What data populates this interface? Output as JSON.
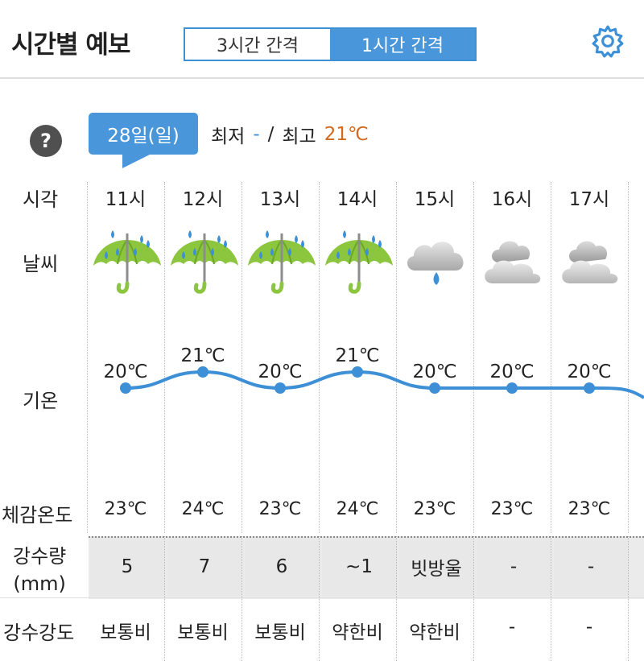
{
  "header": {
    "title": "시간별 예보",
    "tab_3h": "3시간 간격",
    "tab_1h": "1시간 간격",
    "active_tab": "1시간 간격"
  },
  "summary": {
    "date_tag": "28일(일)",
    "min_label": "최저",
    "min_value": "-",
    "separator": "/",
    "max_label": "최고",
    "max_value": "21℃",
    "help": "?"
  },
  "row_labels": {
    "time": "시각",
    "weather": "날씨",
    "temp": "기온",
    "feels": "체감온도",
    "rain_amount_1": "강수량",
    "rain_amount_2": "(mm)",
    "rain_intensity": "강수강도"
  },
  "hours": [
    {
      "hour": "11시",
      "weather": "umbrella-rain-icon",
      "temp": "20℃",
      "feels": "23℃",
      "rain": "5",
      "intensity": "보통비"
    },
    {
      "hour": "12시",
      "weather": "umbrella-rain-icon",
      "temp": "21℃",
      "feels": "24℃",
      "rain": "7",
      "intensity": "보통비"
    },
    {
      "hour": "13시",
      "weather": "umbrella-rain-icon",
      "temp": "20℃",
      "feels": "23℃",
      "rain": "6",
      "intensity": "보통비"
    },
    {
      "hour": "14시",
      "weather": "umbrella-rain-icon",
      "temp": "21℃",
      "feels": "24℃",
      "rain": "~1",
      "intensity": "약한비"
    },
    {
      "hour": "15시",
      "weather": "cloud-drop-icon",
      "temp": "20℃",
      "feels": "23℃",
      "rain": "빗방울",
      "intensity": "약한비"
    },
    {
      "hour": "16시",
      "weather": "cloudy-icon",
      "temp": "20℃",
      "feels": "23℃",
      "rain": "-",
      "intensity": "-"
    },
    {
      "hour": "17시",
      "weather": "cloudy-icon",
      "temp": "20℃",
      "feels": "23℃",
      "rain": "-",
      "intensity": "-"
    }
  ],
  "chart_data": {
    "type": "line",
    "categories": [
      "11시",
      "12시",
      "13시",
      "14시",
      "15시",
      "16시",
      "17시"
    ],
    "values": [
      20,
      21,
      20,
      21,
      20,
      20,
      20
    ],
    "unit": "℃",
    "color": "#3d8fd6"
  },
  "colors": {
    "accent": "#4a96da",
    "max": "#d2691e",
    "min": "#3d8fd6",
    "umbrella": "#8cc63f"
  }
}
